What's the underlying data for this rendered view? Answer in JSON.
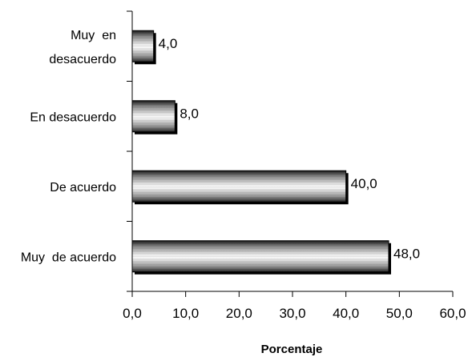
{
  "chart_data": {
    "type": "bar",
    "orientation": "horizontal",
    "title": "",
    "xlabel": "Porcentaje",
    "ylabel": "",
    "categories": [
      [
        "Muy  en",
        "desacuerdo"
      ],
      [
        "En desacuerdo"
      ],
      [
        "De acuerdo"
      ],
      [
        "Muy  de acuerdo"
      ]
    ],
    "values": [
      4.0,
      8.0,
      40.0,
      48.0
    ],
    "data_labels": [
      "4,0",
      "8,0",
      "40,0",
      "48,0"
    ],
    "xlim": [
      0,
      60
    ],
    "xticks": [
      0,
      10,
      20,
      30,
      40,
      50,
      60
    ],
    "xtick_labels": [
      "0,0",
      "10,0",
      "20,0",
      "30,0",
      "40,0",
      "50,0",
      "60,0"
    ],
    "grid": false,
    "legend": "none",
    "bar_style": "horizontal-gradient-stripes"
  }
}
